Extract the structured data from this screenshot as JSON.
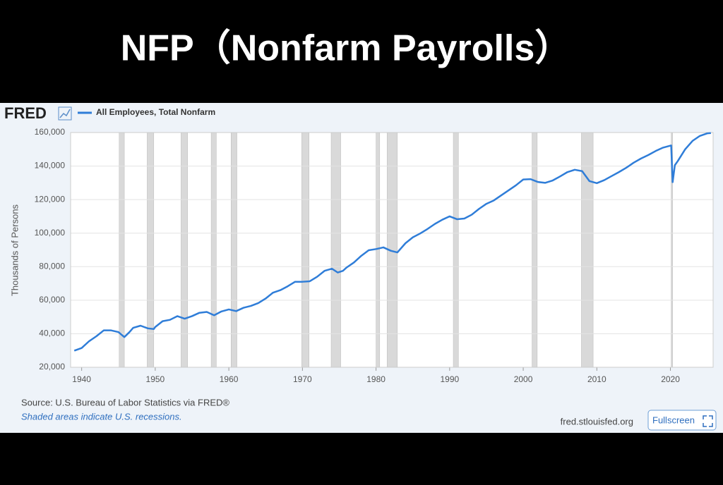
{
  "chart_data": {
    "type": "line",
    "title": "NFP（Nonfarm Payrolls）",
    "logo": "FRED",
    "ylabel": "Thousands of Persons",
    "source": "Source: U.S. Bureau of Labor Statistics via FRED®",
    "note": "Shaded areas indicate U.S. recessions.",
    "link": "fred.stlouisfed.org",
    "button": "Fullscreen",
    "xlim": [
      1938.5,
      2025.8
    ],
    "xticks": [
      1940,
      1950,
      1960,
      1970,
      1980,
      1990,
      2000,
      2010,
      2020
    ],
    "ylim": [
      20000,
      160000
    ],
    "yticks": [
      {
        "value": 20000,
        "label": "20,000"
      },
      {
        "value": 40000,
        "label": "40,000"
      },
      {
        "value": 60000,
        "label": "60,000"
      },
      {
        "value": 80000,
        "label": "80,000"
      },
      {
        "value": 100000,
        "label": "100,000"
      },
      {
        "value": 120000,
        "label": "120,000"
      },
      {
        "value": 140000,
        "label": "140,000"
      },
      {
        "value": 160000,
        "label": "160,000"
      }
    ],
    "grid": true,
    "recessions": [
      [
        1945.1,
        1945.8
      ],
      [
        1948.9,
        1949.8
      ],
      [
        1953.5,
        1954.4
      ],
      [
        1957.6,
        1958.3
      ],
      [
        1960.3,
        1961.1
      ],
      [
        1969.9,
        1970.9
      ],
      [
        1973.9,
        1975.2
      ],
      [
        1980.0,
        1980.5
      ],
      [
        1981.5,
        1982.9
      ],
      [
        1990.5,
        1991.2
      ],
      [
        2001.2,
        2001.9
      ],
      [
        2007.9,
        2009.5
      ],
      [
        2020.1,
        2020.3
      ]
    ],
    "recession_color": "#d9d9d9",
    "series": [
      {
        "name": "All Employees, Total Nonfarm",
        "color": "#2f7dd8",
        "x": [
          1939,
          1940,
          1941,
          1942,
          1943,
          1944,
          1945,
          1945.8,
          1946.5,
          1947,
          1948,
          1949,
          1949.8,
          1950,
          1951,
          1952,
          1953,
          1954,
          1955,
          1956,
          1957,
          1958,
          1959,
          1960,
          1961,
          1962,
          1963,
          1964,
          1965,
          1966,
          1967,
          1968,
          1969,
          1970,
          1971,
          1972,
          1973,
          1974,
          1974.8,
          1975.5,
          1976,
          1977,
          1978,
          1979,
          1980,
          1981,
          1982,
          1982.9,
          1984,
          1985,
          1986,
          1987,
          1988,
          1989,
          1990,
          1991,
          1992,
          1993,
          1994,
          1995,
          1996,
          1997,
          1998,
          1999,
          2000,
          2001,
          2002,
          2003,
          2004,
          2005,
          2006,
          2007,
          2008,
          2009,
          2010,
          2011,
          2012,
          2013,
          2014,
          2015,
          2016,
          2017,
          2018,
          2019,
          2020.1,
          2020.3,
          2020.6,
          2021,
          2022,
          2023,
          2024,
          2025,
          2025.5
        ],
        "values": [
          29900,
          31500,
          35500,
          38500,
          42000,
          42000,
          41000,
          38000,
          41000,
          43500,
          44800,
          43200,
          42800,
          44000,
          47500,
          48300,
          50500,
          49000,
          50500,
          52500,
          53000,
          51000,
          53300,
          54500,
          53500,
          55500,
          56600,
          58300,
          61000,
          64500,
          66000,
          68300,
          71000,
          71000,
          71300,
          74000,
          77500,
          78800,
          76500,
          77500,
          79500,
          82500,
          86500,
          89800,
          90500,
          91500,
          89500,
          88500,
          94000,
          97500,
          99800,
          102500,
          105500,
          108000,
          110000,
          108300,
          108700,
          111000,
          114500,
          117500,
          119500,
          122500,
          125500,
          128500,
          132000,
          132200,
          130500,
          130000,
          131400,
          133800,
          136400,
          137800,
          137000,
          131000,
          129800,
          131600,
          134000,
          136400,
          139000,
          142000,
          144500,
          146600,
          149000,
          151000,
          152300,
          130400,
          140500,
          143000,
          150000,
          155000,
          158000,
          159500,
          159700
        ]
      }
    ]
  }
}
